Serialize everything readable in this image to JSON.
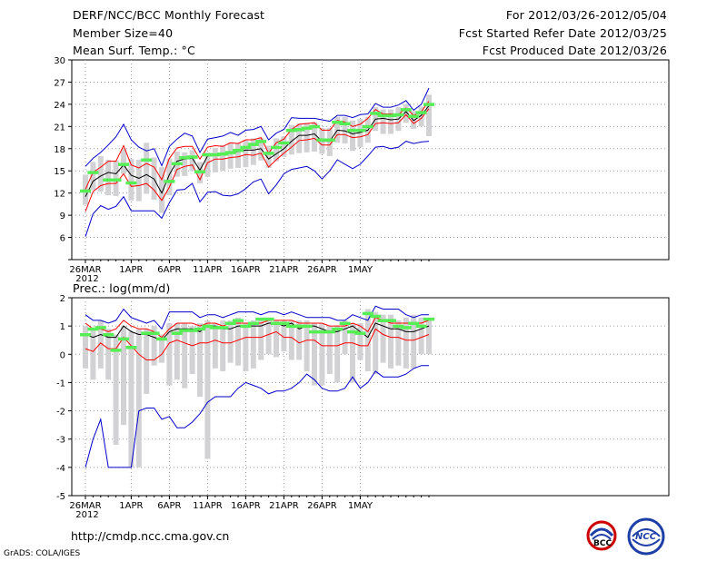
{
  "header": {
    "title": "DERF/NCC/BCC Monthly Forecast",
    "member": "Member Size=40",
    "variable": "Mean Surf. Temp.: °C",
    "period": "For 2012/03/26-2012/05/04",
    "start": "Fcst Started Refer Date 2012/03/25",
    "produced": "Fcst Produced Date 2012/03/26"
  },
  "footer": {
    "url": "http://cmdp.ncc.cma.gov.cn",
    "credit": "GrADS: COLA/IGES",
    "logo_left": "BCC",
    "logo_right": "NCC"
  },
  "colors": {
    "mean": "#000000",
    "spread": "#ff0000",
    "envelope": "#0000cc",
    "obs_bar": "#d2d2d4",
    "marker": "#55ee55"
  },
  "chart_data": [
    {
      "type": "line",
      "title": "Mean Surf. Temp.: °C",
      "xlabel": "",
      "ylabel": "°C",
      "ylim": [
        3,
        30
      ],
      "yticks": [
        3,
        6,
        9,
        12,
        15,
        18,
        21,
        24,
        27,
        30
      ],
      "ytick_labels": [
        "",
        "6",
        "9",
        "12",
        "15",
        "18",
        "21",
        "24",
        "27",
        "30"
      ],
      "x_tick_days": [
        0,
        6,
        11,
        16,
        21,
        26,
        31,
        36
      ],
      "x_tick_labels": [
        "26MAR\n2012",
        "1APR",
        "6APR",
        "11APR",
        "16APR",
        "21APR",
        "26APR",
        "1MAY"
      ],
      "days": 40,
      "series": [
        {
          "name": "ensemble mean",
          "values": [
            11.5,
            13.6,
            14.3,
            14.8,
            14.6,
            15.8,
            14.4,
            14.0,
            14.5,
            13.9,
            12.0,
            14.5,
            16.3,
            16.6,
            16.7,
            15.1,
            17.0,
            17.3,
            17.3,
            17.5,
            17.6,
            17.8,
            17.8,
            18.0,
            16.6,
            17.3,
            18.0,
            19.0,
            19.8,
            19.8,
            20.0,
            19.0,
            19.0,
            20.5,
            20.4,
            20.0,
            20.2,
            20.5,
            22.0,
            22.1,
            21.9,
            22.0,
            23.0,
            21.8,
            22.5,
            23.8
          ]
        },
        {
          "name": "mean + 1 sd",
          "values": [
            12.5,
            14.8,
            15.5,
            16.3,
            16.3,
            18.4,
            15.8,
            15.4,
            16.0,
            15.5,
            13.8,
            16.7,
            18.1,
            18.3,
            18.3,
            16.6,
            18.2,
            18.4,
            18.3,
            18.8,
            18.7,
            19.2,
            19.2,
            19.5,
            17.4,
            18.8,
            19.3,
            20.6,
            21.3,
            21.4,
            21.5,
            20.5,
            20.5,
            21.8,
            21.6,
            21.0,
            21.3,
            22.1,
            23.3,
            22.7,
            22.7,
            22.6,
            23.5,
            22.5,
            23.0,
            24.4
          ]
        },
        {
          "name": "mean - 1 sd",
          "values": [
            9.5,
            12.2,
            13.0,
            13.3,
            13.3,
            14.6,
            12.9,
            13.0,
            13.3,
            12.4,
            11.0,
            12.8,
            15.2,
            15.6,
            15.8,
            13.8,
            16.1,
            16.6,
            16.6,
            16.8,
            16.9,
            17.2,
            17.1,
            17.4,
            15.5,
            16.5,
            17.4,
            18.2,
            19.1,
            19.2,
            19.4,
            18.5,
            18.5,
            19.9,
            19.9,
            19.5,
            19.6,
            19.9,
            21.4,
            21.5,
            21.4,
            21.5,
            22.6,
            21.4,
            22.1,
            23.4
          ]
        },
        {
          "name": "ensemble max",
          "values": [
            15.6,
            16.7,
            17.5,
            18.5,
            19.6,
            21.3,
            19.2,
            18.2,
            17.7,
            18.0,
            15.7,
            18.3,
            19.3,
            20.1,
            19.7,
            17.5,
            19.3,
            19.5,
            19.7,
            20.2,
            19.8,
            20.5,
            20.6,
            21.0,
            19.2,
            20.1,
            20.6,
            22.2,
            22.1,
            22.1,
            22.1,
            21.9,
            21.7,
            22.5,
            22.5,
            22.2,
            22.6,
            22.7,
            24.1,
            23.6,
            23.6,
            23.9,
            24.5,
            23.2,
            24.0,
            26.2
          ]
        },
        {
          "name": "ensemble min",
          "values": [
            6.1,
            9.2,
            10.3,
            9.8,
            10.2,
            11.5,
            9.6,
            9.6,
            9.6,
            9.6,
            8.6,
            10.7,
            12.4,
            12.5,
            13.3,
            10.8,
            12.1,
            12.2,
            11.7,
            11.6,
            11.9,
            12.6,
            13.5,
            13.9,
            11.9,
            13.1,
            14.6,
            15.2,
            15.4,
            15.6,
            15.0,
            13.9,
            15.0,
            16.5,
            15.9,
            15.3,
            15.9,
            17.0,
            18.2,
            18.3,
            18.0,
            18.2,
            19.0,
            18.7,
            18.9,
            19.0
          ]
        },
        {
          "name": "green markers",
          "values": [
            12.3,
            14.8,
            null,
            13.8,
            13.8,
            15.9,
            13.4,
            null,
            16.5,
            null,
            null,
            13.6,
            16.0,
            16.8,
            16.9,
            14.9,
            17.2,
            17.2,
            17.3,
            17.5,
            17.8,
            18.2,
            18.6,
            19.0,
            17.4,
            18.2,
            18.8,
            20.5,
            20.6,
            20.8,
            21.0,
            19.2,
            19.2,
            21.6,
            21.4,
            20.5,
            20.5,
            21.0,
            22.8,
            22.5,
            22.5,
            22.6,
            23.3,
            22.4,
            22.9,
            24.0
          ]
        },
        {
          "name": "gray bar top",
          "values": [
            14.5,
            16.2,
            17.0,
            16.5,
            16.4,
            18.0,
            16.6,
            16.5,
            18.8,
            16.8,
            15.5,
            16.7,
            17.6,
            17.5,
            17.8,
            16.2,
            17.5,
            18.1,
            18.5,
            18.8,
            18.8,
            19.1,
            19.4,
            19.5,
            18.4,
            19.4,
            19.7,
            21.2,
            21.4,
            21.5,
            21.6,
            20.8,
            20.8,
            22.3,
            22.3,
            21.8,
            22.0,
            22.3,
            23.6,
            23.3,
            23.3,
            23.6,
            24.0,
            23.1,
            23.7,
            25.3
          ]
        },
        {
          "name": "gray bar bottom",
          "values": [
            10.4,
            12.4,
            12.2,
            11.7,
            11.6,
            14.6,
            11.0,
            10.9,
            11.9,
            11.1,
            9.3,
            11.7,
            14.2,
            14.3,
            15.0,
            13.3,
            14.2,
            14.8,
            15.0,
            15.3,
            15.4,
            15.5,
            15.8,
            16.4,
            15.4,
            16.3,
            16.9,
            17.2,
            17.4,
            17.5,
            17.6,
            17.3,
            17.0,
            18.8,
            18.7,
            17.7,
            18.2,
            18.8,
            20.4,
            20.0,
            20.0,
            20.4,
            21.5,
            20.7,
            21.0,
            19.7
          ]
        }
      ]
    },
    {
      "type": "line",
      "title": "Prec.: log(mm/d)",
      "xlabel": "",
      "ylabel": "log(mm/d)",
      "ylim": [
        -5,
        2
      ],
      "yticks": [
        -5,
        -4,
        -3,
        -2,
        -1,
        0,
        1,
        2
      ],
      "ytick_labels": [
        "-5",
        "-4",
        "-3",
        "-2",
        "-1",
        "0",
        "1",
        "2"
      ],
      "x_tick_days": [
        0,
        6,
        11,
        16,
        21,
        26,
        31,
        36
      ],
      "x_tick_labels": [
        "26MAR\n2012",
        "1APR",
        "6APR",
        "11APR",
        "16APR",
        "21APR",
        "26APR",
        "1MAY"
      ],
      "days": 40,
      "series": [
        {
          "name": "ensemble mean",
          "values": [
            0.7,
            0.6,
            0.7,
            0.6,
            0.6,
            1.0,
            0.8,
            0.7,
            0.7,
            0.6,
            0.5,
            0.8,
            0.9,
            0.9,
            0.9,
            0.8,
            1.0,
            1.0,
            0.9,
            0.9,
            1.0,
            1.0,
            1.0,
            1.0,
            1.1,
            1.1,
            1.0,
            1.1,
            0.9,
            1.0,
            1.0,
            0.9,
            0.8,
            0.8,
            0.9,
            1.0,
            0.8,
            0.6,
            1.1,
            1.0,
            0.9,
            0.9,
            0.8,
            0.8,
            0.9,
            1.0
          ]
        },
        {
          "name": "mean + 1 sd",
          "values": [
            1.1,
            0.9,
            0.9,
            0.8,
            0.9,
            1.2,
            1.0,
            0.9,
            0.9,
            0.8,
            0.6,
            0.9,
            1.1,
            1.1,
            1.1,
            1.0,
            1.1,
            1.1,
            1.0,
            1.1,
            1.1,
            1.1,
            1.1,
            1.1,
            1.2,
            1.2,
            1.2,
            1.2,
            1.1,
            1.1,
            1.1,
            1.1,
            1.0,
            1.0,
            1.0,
            1.1,
            1.0,
            0.8,
            1.3,
            1.2,
            1.1,
            1.1,
            1.1,
            1.1,
            1.1,
            1.2
          ]
        },
        {
          "name": "mean - 1 sd",
          "values": [
            0.2,
            0.1,
            0.4,
            0.2,
            0.2,
            0.6,
            0.3,
            0.0,
            -0.2,
            -0.2,
            0.0,
            0.4,
            0.5,
            0.4,
            0.3,
            0.4,
            0.4,
            0.5,
            0.4,
            0.4,
            0.5,
            0.6,
            0.6,
            0.6,
            0.7,
            0.8,
            0.6,
            0.6,
            0.4,
            0.5,
            0.5,
            0.3,
            0.3,
            0.3,
            0.4,
            0.4,
            0.3,
            0.3,
            0.9,
            0.7,
            0.6,
            0.6,
            0.5,
            0.5,
            0.6,
            0.7
          ]
        },
        {
          "name": "ensemble max",
          "values": [
            1.4,
            1.2,
            1.2,
            1.1,
            1.2,
            1.6,
            1.3,
            1.2,
            1.1,
            1.2,
            0.9,
            1.5,
            1.5,
            1.5,
            1.5,
            1.3,
            1.4,
            1.4,
            1.3,
            1.4,
            1.5,
            1.5,
            1.5,
            1.4,
            1.5,
            1.5,
            1.4,
            1.5,
            1.4,
            1.3,
            1.3,
            1.3,
            1.3,
            1.2,
            1.2,
            1.4,
            1.3,
            1.2,
            1.7,
            1.6,
            1.6,
            1.6,
            1.4,
            1.3,
            1.4,
            1.4
          ]
        },
        {
          "name": "ensemble min",
          "values": [
            -4.0,
            -3.0,
            -2.3,
            -4.0,
            -4.0,
            -4.0,
            -4.0,
            -2.0,
            -1.9,
            -1.9,
            -2.3,
            -2.2,
            -2.6,
            -2.6,
            -2.4,
            -2.1,
            -1.7,
            -1.5,
            -1.5,
            -1.5,
            -1.2,
            -1.0,
            -1.1,
            -1.2,
            -1.4,
            -1.3,
            -1.3,
            -1.2,
            -1.0,
            -0.7,
            -0.9,
            -1.2,
            -1.3,
            -1.3,
            -1.2,
            -0.8,
            -1.2,
            -1.0,
            -0.6,
            -0.8,
            -0.8,
            -0.8,
            -0.7,
            -0.5,
            -0.4,
            -0.4
          ]
        },
        {
          "name": "green markers",
          "values": [
            0.7,
            0.9,
            0.95,
            0.7,
            0.15,
            0.55,
            0.25,
            null,
            0.75,
            0.75,
            0.55,
            null,
            0.75,
            0.85,
            0.85,
            0.9,
            1.0,
            0.95,
            0.95,
            1.1,
            1.2,
            1.0,
            1.1,
            1.25,
            1.25,
            1.1,
            1.1,
            1.0,
            1.0,
            1.0,
            0.8,
            0.8,
            0.8,
            0.9,
            1.1,
            0.8,
            0.75,
            1.45,
            1.35,
            1.2,
            1.2,
            1.0,
            0.95,
            1.1,
            1.0,
            1.25
          ]
        },
        {
          "name": "gray bar top",
          "values": [
            1.0,
            0.9,
            1.2,
            0.9,
            0.7,
            1.0,
            0.8,
            0.9,
            0.9,
            1.0,
            0.7,
            1.1,
            1.1,
            1.1,
            1.0,
            1.1,
            1.2,
            1.1,
            1.2,
            1.2,
            1.3,
            1.1,
            1.2,
            1.3,
            1.3,
            1.2,
            1.2,
            1.2,
            1.2,
            1.2,
            1.1,
            1.1,
            1.0,
            1.0,
            1.2,
            1.1,
            1.1,
            1.6,
            1.5,
            1.4,
            1.4,
            1.2,
            1.3,
            1.4,
            1.3,
            1.3
          ]
        },
        {
          "name": "gray bar bottom",
          "values": [
            -0.5,
            -0.9,
            -0.5,
            -0.9,
            -3.2,
            -2.5,
            -4.0,
            -4.0,
            -1.4,
            -0.4,
            -0.3,
            -1.1,
            -0.9,
            -1.2,
            -0.7,
            -1.5,
            -3.7,
            -0.5,
            -0.6,
            -0.3,
            -0.4,
            -0.6,
            -0.5,
            -0.2,
            0.0,
            -0.1,
            0.1,
            -0.2,
            -0.2,
            -0.6,
            -1.1,
            -1.1,
            -0.7,
            -1.0,
            0.0,
            -1.0,
            -0.2,
            -0.6,
            -0.7,
            -0.3,
            -0.5,
            -0.4,
            -0.5,
            -0.5,
            0.0,
            0.0
          ]
        }
      ]
    }
  ]
}
